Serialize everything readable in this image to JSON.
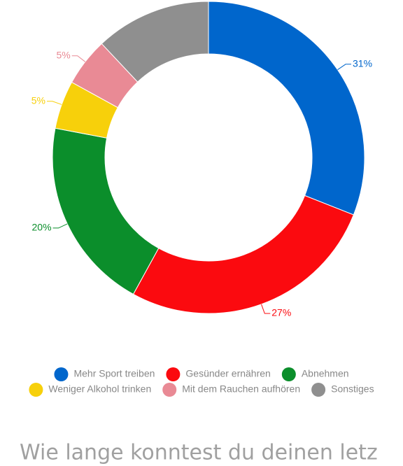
{
  "chart_data": {
    "type": "donut",
    "categories": [
      "Mehr Sport treiben",
      "Gesünder ernähren",
      "Abnehmen",
      "Weniger Alkohol trinken",
      "Mit dem Rauchen aufhören",
      "Sonstiges"
    ],
    "values": [
      31,
      27,
      20,
      5,
      5,
      12
    ],
    "value_labels": [
      "31%",
      "27%",
      "20%",
      "5%",
      "5%",
      null
    ],
    "colors": [
      "#0066cc",
      "#fb0a0f",
      "#0b8e2b",
      "#f7d00b",
      "#e98a95",
      "#8f8f8f"
    ],
    "legend": "bottom"
  },
  "question": "Wie lange konntest du deinen letz"
}
